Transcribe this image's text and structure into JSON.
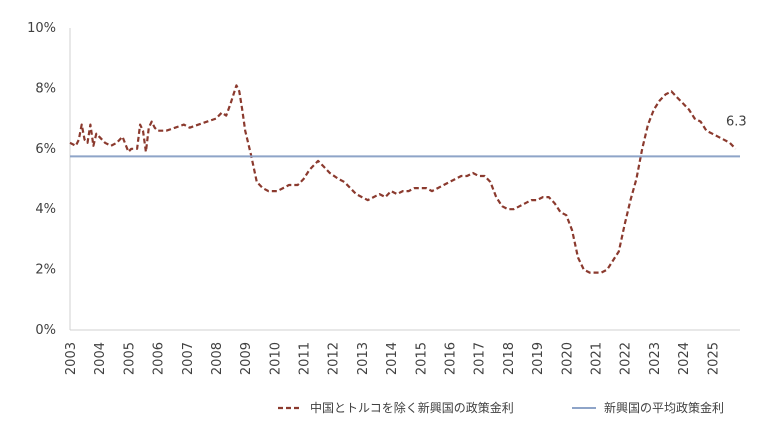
{
  "chart_data": {
    "type": "line",
    "title": "",
    "xlabel": "",
    "ylabel": "",
    "ylim": [
      0,
      10
    ],
    "xlim": [
      2003,
      2025.95
    ],
    "y_ticks": [
      "0%",
      "2%",
      "4%",
      "6%",
      "8%",
      "10%"
    ],
    "x_ticks": [
      "2003",
      "2004",
      "2005",
      "2006",
      "2007",
      "2008",
      "2009",
      "2010",
      "2011",
      "2012",
      "2013",
      "2014",
      "2015",
      "2016",
      "2017",
      "2018",
      "2019",
      "2020",
      "2021",
      "2022",
      "2023",
      "2024",
      "2025"
    ],
    "legend_position": "bottom",
    "series": [
      {
        "name": "中国とトルコを除く新興国の政策金利",
        "style": "dashed",
        "color": "#8B3A2E",
        "x": [
          2003.0,
          2003.2,
          2003.3,
          2003.4,
          2003.5,
          2003.6,
          2003.7,
          2003.8,
          2003.9,
          2004.0,
          2004.1,
          2004.2,
          2004.4,
          2004.6,
          2004.8,
          2005.0,
          2005.1,
          2005.3,
          2005.4,
          2005.5,
          2005.6,
          2005.7,
          2005.8,
          2005.9,
          2006.0,
          2006.3,
          2006.6,
          2006.9,
          2007.1,
          2007.4,
          2007.7,
          2008.0,
          2008.2,
          2008.35,
          2008.5,
          2008.7,
          2008.8,
          2008.9,
          2009.0,
          2009.2,
          2009.4,
          2009.6,
          2009.8,
          2010.1,
          2010.3,
          2010.5,
          2010.8,
          2011.0,
          2011.2,
          2011.5,
          2011.7,
          2011.9,
          2012.2,
          2012.4,
          2012.6,
          2012.8,
          2013.0,
          2013.2,
          2013.4,
          2013.6,
          2013.8,
          2014.0,
          2014.2,
          2014.4,
          2014.6,
          2014.8,
          2015.0,
          2015.2,
          2015.4,
          2015.6,
          2015.8,
          2016.0,
          2016.2,
          2016.4,
          2016.6,
          2016.8,
          2017.0,
          2017.2,
          2017.4,
          2017.6,
          2017.8,
          2018.0,
          2018.2,
          2018.4,
          2018.6,
          2018.8,
          2019.0,
          2019.2,
          2019.4,
          2019.6,
          2019.8,
          2020.0,
          2020.2,
          2020.4,
          2020.6,
          2020.8,
          2021.0,
          2021.2,
          2021.4,
          2021.6,
          2021.8,
          2022.0,
          2022.2,
          2022.4,
          2022.6,
          2022.8,
          2023.0,
          2023.2,
          2023.4,
          2023.6,
          2023.8,
          2024.0,
          2024.2,
          2024.4,
          2024.6,
          2024.8,
          2025.0,
          2025.2,
          2025.4,
          2025.6,
          2025.8
        ],
        "y": [
          6.2,
          6.1,
          6.3,
          6.8,
          6.3,
          6.2,
          6.8,
          6.1,
          6.5,
          6.4,
          6.3,
          6.2,
          6.1,
          6.2,
          6.4,
          5.9,
          6.0,
          6.0,
          6.8,
          6.6,
          5.9,
          6.7,
          6.9,
          6.7,
          6.6,
          6.6,
          6.7,
          6.8,
          6.7,
          6.8,
          6.9,
          7.0,
          7.2,
          7.1,
          7.5,
          8.1,
          7.9,
          7.3,
          6.6,
          5.8,
          4.9,
          4.7,
          4.6,
          4.6,
          4.7,
          4.8,
          4.8,
          5.0,
          5.3,
          5.6,
          5.4,
          5.2,
          5.0,
          4.9,
          4.7,
          4.5,
          4.4,
          4.3,
          4.4,
          4.5,
          4.4,
          4.6,
          4.5,
          4.6,
          4.6,
          4.7,
          4.7,
          4.7,
          4.6,
          4.7,
          4.8,
          4.9,
          5.0,
          5.1,
          5.1,
          5.2,
          5.1,
          5.1,
          4.9,
          4.4,
          4.1,
          4.0,
          4.0,
          4.1,
          4.2,
          4.3,
          4.3,
          4.4,
          4.4,
          4.2,
          3.9,
          3.8,
          3.3,
          2.4,
          2.0,
          1.9,
          1.9,
          1.9,
          2.0,
          2.3,
          2.6,
          3.5,
          4.3,
          5.0,
          6.0,
          6.8,
          7.3,
          7.6,
          7.8,
          7.9,
          7.7,
          7.5,
          7.3,
          7.0,
          6.9,
          6.6,
          6.5,
          6.4,
          6.3,
          6.2,
          6.0
        ]
      },
      {
        "name": "新興国の平均政策金利",
        "style": "solid",
        "color": "#8EA4C8",
        "x": [
          2003.0,
          2025.95
        ],
        "y": [
          5.75,
          5.75
        ]
      }
    ],
    "annotations": [
      {
        "text": "6.3",
        "x": 2025.3,
        "y": 6.3
      }
    ]
  }
}
